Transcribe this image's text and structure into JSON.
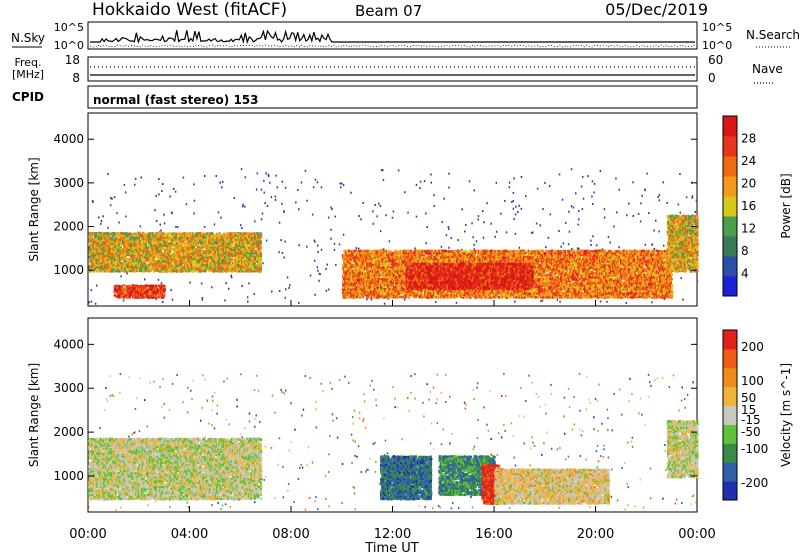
{
  "header": {
    "title": "Hokkaido West (fitACF)",
    "beam": "Beam 07",
    "date": "05/Dec/2019"
  },
  "top_panels": {
    "nsky_label": "N.Sky",
    "nsky_ticks": [
      "10^5",
      "10^0"
    ],
    "nsearch_label": "N.Search",
    "freq_label_line1": "Freq.",
    "freq_label_line2": "[MHz]",
    "freq_ticks": [
      "18",
      "8"
    ],
    "nave_ticks": [
      "60",
      "0"
    ],
    "nave_label": "Nave",
    "cpid_label": "CPID",
    "cpid_text": "normal (fast stereo) 153"
  },
  "colors": {
    "power_scale": [
      "#1a22d8",
      "#2b4fa8",
      "#3a7a5a",
      "#4aa04a",
      "#d8c81e",
      "#f39a1a",
      "#f06a12",
      "#e8361e",
      "#d81818"
    ],
    "velocity_scale": [
      "#1f2fb0",
      "#2f5fa6",
      "#3b8a4a",
      "#5fc23a",
      "#c8c8c0",
      "#f0b43c",
      "#f08c18",
      "#f05a14",
      "#e0201a"
    ],
    "scatter_blue": "#2a3e9a"
  },
  "chart_data": [
    {
      "type": "heatmap",
      "panel": "power",
      "ylabel": "Slant Range [km]",
      "xlabel": "Time UT",
      "x_ticks": [
        "00:00",
        "04:00",
        "08:00",
        "12:00",
        "16:00",
        "20:00",
        "00:00"
      ],
      "y_ticks": [
        1000,
        2000,
        3000,
        4000
      ],
      "ylim": [
        180,
        4600
      ],
      "xlim_hours": [
        0,
        24
      ],
      "colorbar": {
        "label": "Power [dB]",
        "ticks": [
          4,
          8,
          12,
          16,
          20,
          24,
          28
        ],
        "range": [
          0,
          32
        ]
      },
      "echo_regions": [
        {
          "t0": 0.0,
          "t1": 6.8,
          "r0": 1000,
          "r1": 1900,
          "value": 18
        },
        {
          "t0": 1.0,
          "t1": 3.0,
          "r0": 400,
          "r1": 700,
          "value": 27
        },
        {
          "t0": 10.0,
          "t1": 23.0,
          "r0": 400,
          "r1": 1500,
          "value": 22
        },
        {
          "t0": 12.5,
          "t1": 17.5,
          "r0": 600,
          "r1": 1200,
          "value": 29
        },
        {
          "t0": 22.8,
          "t1": 24.0,
          "r0": 1000,
          "r1": 2300,
          "value": 18
        }
      ]
    },
    {
      "type": "heatmap",
      "panel": "velocity",
      "ylabel": "Slant Range [km]",
      "xlabel": "Time UT",
      "x_ticks": [
        "00:00",
        "04:00",
        "08:00",
        "12:00",
        "16:00",
        "20:00",
        "00:00"
      ],
      "y_ticks": [
        1000,
        2000,
        3000,
        4000
      ],
      "ylim": [
        180,
        4600
      ],
      "xlim_hours": [
        0,
        24
      ],
      "colorbar": {
        "label": "Velocity [m s^-1]",
        "ticks": [
          200,
          100,
          50,
          15,
          -15,
          -50,
          -100,
          -200
        ],
        "range": [
          -250,
          250
        ]
      },
      "echo_regions": [
        {
          "t0": 0.0,
          "t1": 6.8,
          "r0": 500,
          "r1": 1900,
          "value": 0
        },
        {
          "t0": 11.5,
          "t1": 13.5,
          "r0": 500,
          "r1": 1500,
          "value": -150
        },
        {
          "t0": 13.8,
          "t1": 16.0,
          "r0": 600,
          "r1": 1500,
          "value": -120
        },
        {
          "t0": 15.5,
          "t1": 16.2,
          "r0": 400,
          "r1": 1300,
          "value": 220
        },
        {
          "t0": 16.0,
          "t1": 20.5,
          "r0": 400,
          "r1": 1200,
          "value": 30
        },
        {
          "t0": 22.8,
          "t1": 24.0,
          "r0": 1000,
          "r1": 2300,
          "value": 0
        }
      ]
    }
  ]
}
